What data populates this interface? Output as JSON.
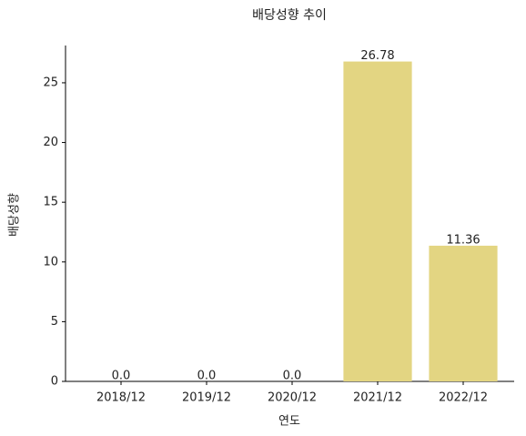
{
  "chart_data": {
    "type": "bar",
    "title": "배당성향 추이",
    "x_label": "연도",
    "y_label": "배당성향",
    "categories": [
      "2018/12",
      "2019/12",
      "2020/12",
      "2021/12",
      "2022/12"
    ],
    "values": [
      0,
      0,
      0,
      26.78,
      11.36
    ],
    "value_labels": [
      "0.0",
      "0.0",
      "0.0",
      "26.78",
      "11.36"
    ],
    "color": "#e3d582",
    "ylim": [
      0,
      28.12
    ],
    "yticks": [
      0,
      5,
      10,
      15,
      20,
      25
    ],
    "grid": false
  }
}
